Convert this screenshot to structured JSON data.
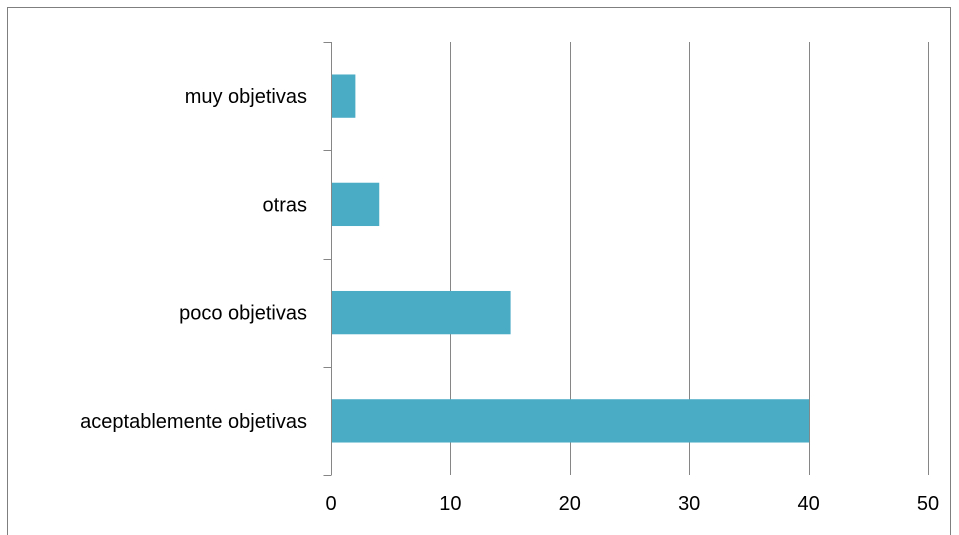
{
  "chart_data": {
    "type": "bar",
    "orientation": "horizontal",
    "categories": [
      "aceptablemente objetivas",
      "poco objetivas",
      "otras",
      "muy objetivas"
    ],
    "values": [
      40,
      15,
      4,
      2
    ],
    "xlim": [
      0,
      50
    ],
    "x_ticks": [
      0,
      10,
      20,
      30,
      40,
      50
    ],
    "grid": true,
    "legend": "none",
    "bar_color": "#4bacc6"
  }
}
